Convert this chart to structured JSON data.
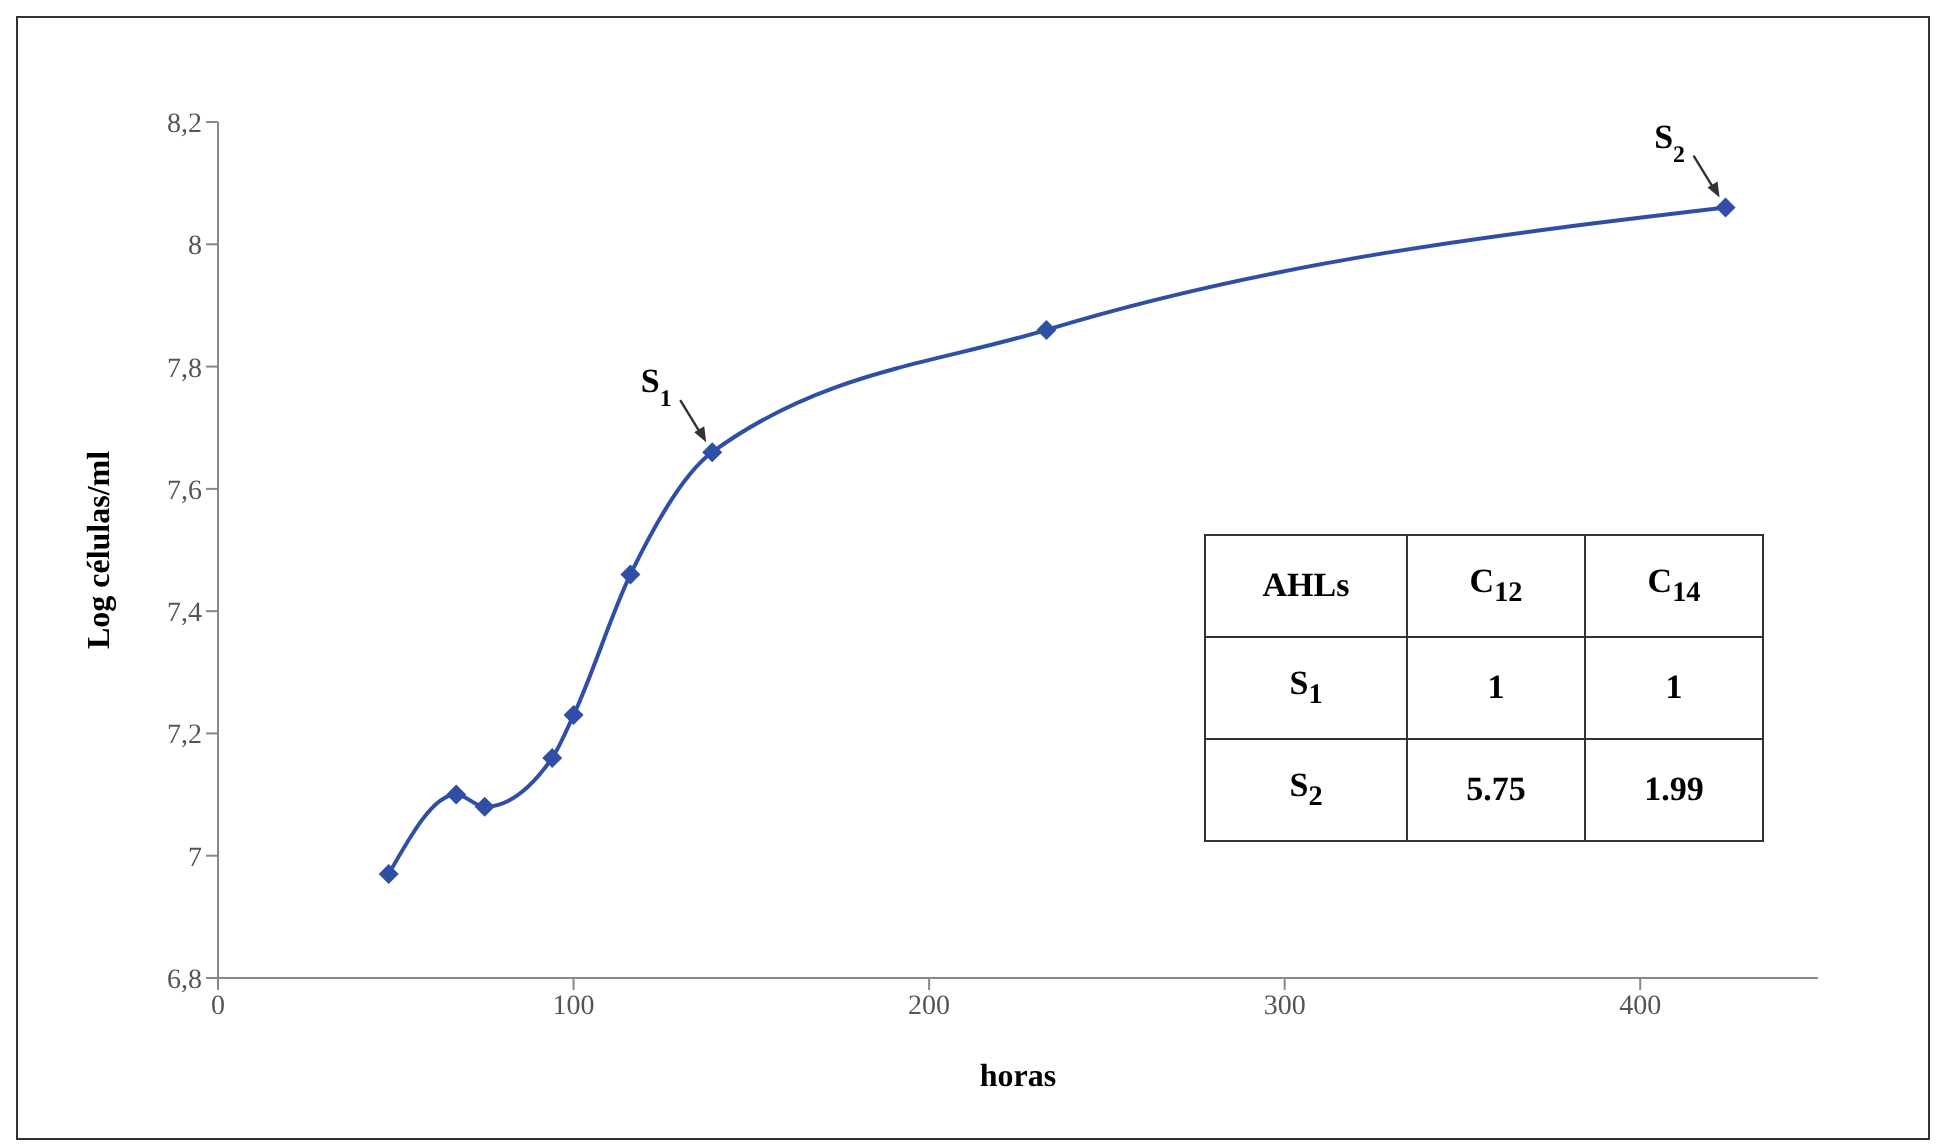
{
  "chart_data": [
    {
      "type": "line",
      "xlabel": "horas",
      "ylabel": "Log células/ml",
      "x": [
        48,
        67,
        75,
        94,
        100,
        116,
        139,
        233,
        424
      ],
      "series": [
        {
          "color": "#2f4fa6",
          "values": [
            6.97,
            7.1,
            7.08,
            7.16,
            7.23,
            7.46,
            7.66,
            7.86,
            8.06
          ]
        }
      ],
      "xlim": [
        0,
        450
      ],
      "xticks": [
        0,
        100,
        200,
        300,
        400
      ],
      "ylim": [
        6.8,
        8.2
      ],
      "yticks": [
        {
          "value": 6.8,
          "label": "6,8"
        },
        7,
        {
          "value": 7.2,
          "label": "7,2"
        },
        {
          "value": 7.4,
          "label": "7,4"
        },
        {
          "value": 7.6,
          "label": "7,6"
        },
        {
          "value": 7.8,
          "label": "7,8"
        },
        8,
        {
          "value": 8.2,
          "label": "8,2"
        }
      ],
      "grid": false,
      "legend": false,
      "marker": "diamond",
      "line_style": "solid",
      "annotations": [
        {
          "text": "S$_{1}$",
          "x": 139,
          "y": 7.66
        },
        {
          "text": "S$_{2}$",
          "x": 424,
          "y": 8.06
        }
      ]
    },
    {
      "type": "other",
      "title": "AHLs",
      "categories": [
        "C$_{12}$",
        "C$_{14}$"
      ],
      "y_categories": [
        "S$_{1}$",
        "S$_{2}$"
      ],
      "cells": [
        [
          "1",
          "1"
        ],
        [
          "5.75",
          "1.99"
        ]
      ]
    }
  ]
}
